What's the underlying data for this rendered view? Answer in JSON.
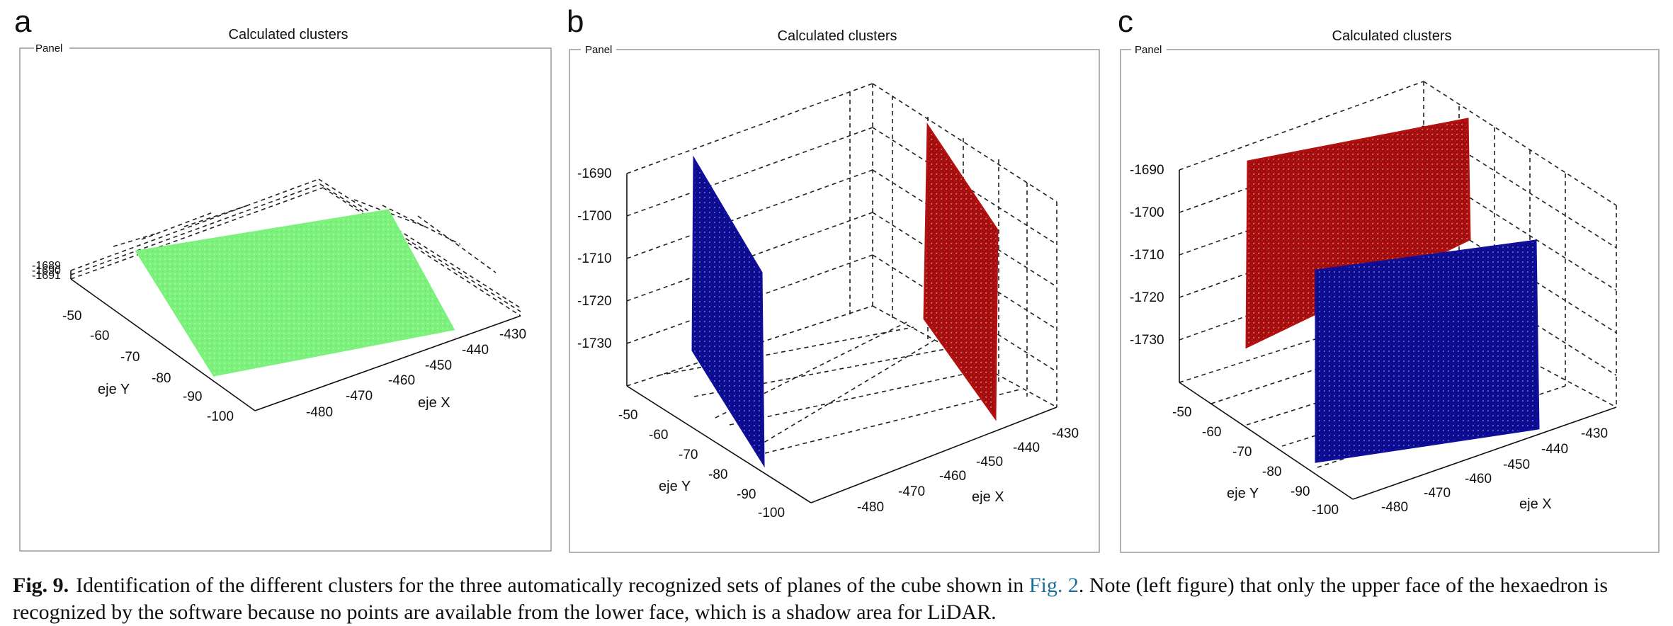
{
  "panels": [
    {
      "letter": "a",
      "title": "Calculated clusters",
      "frame_label": "Panel"
    },
    {
      "letter": "b",
      "title": "Calculated clusters",
      "frame_label": "Panel"
    },
    {
      "letter": "c",
      "title": "Calculated clusters",
      "frame_label": "Panel"
    }
  ],
  "caption": {
    "fig_label": "Fig. 9.",
    "text_before_ref": "Identification of the different clusters for the three automatically recognized sets of planes of the cube shown in ",
    "ref": "Fig. 2",
    "text_after_ref": ". Note (left figure) that only the upper face of the hexaedron is recognized by the software because no points are available from the lower face, which is a shadow area for LiDAR."
  },
  "colors": {
    "green": "#7cf27c",
    "blue": "#0f0f9a",
    "red": "#b31010"
  },
  "chart_data": [
    {
      "type": "scatter",
      "title": "Calculated clusters",
      "xlabel": "eje X",
      "ylabel": "eje Y",
      "x_ticks": [
        "-480",
        "-470",
        "-460",
        "-450",
        "-440",
        "-430"
      ],
      "y_ticks": [
        "-50",
        "-60",
        "-70",
        "-80",
        "-90",
        "-100"
      ],
      "z_ticks": [
        "-1689",
        "-1690",
        "-1691"
      ],
      "xlim": [
        -485,
        -425
      ],
      "ylim": [
        -100,
        -45
      ],
      "zlim": [
        -1691,
        -1689
      ],
      "grid": true,
      "series": [
        {
          "color": "#7cf27c",
          "plane": "upper face",
          "corners_xyz": [
            [
              -480,
              -50,
              -1690
            ],
            [
              -430,
              -50,
              -1690
            ],
            [
              -430,
              -100,
              -1690
            ],
            [
              -480,
              -100,
              -1690
            ]
          ]
        }
      ]
    },
    {
      "type": "scatter",
      "title": "Calculated clusters",
      "xlabel": "eje X",
      "ylabel": "eje Y",
      "x_ticks": [
        "-480",
        "-470",
        "-460",
        "-450",
        "-440",
        "-430"
      ],
      "y_ticks": [
        "-50",
        "-60",
        "-70",
        "-80",
        "-90",
        "-100"
      ],
      "z_ticks": [
        "-1690",
        "-1700",
        "-1710",
        "-1720",
        "-1730"
      ],
      "xlim": [
        -485,
        -425
      ],
      "ylim": [
        -100,
        -45
      ],
      "zlim": [
        -1740,
        -1685
      ],
      "grid": true,
      "series": [
        {
          "color": "#0f0f9a",
          "plane": "x = -480",
          "corners_xyz": [
            [
              -480,
              -50,
              -1690
            ],
            [
              -480,
              -100,
              -1690
            ],
            [
              -480,
              -100,
              -1740
            ],
            [
              -480,
              -50,
              -1740
            ]
          ]
        },
        {
          "color": "#b31010",
          "plane": "x = -430",
          "corners_xyz": [
            [
              -430,
              -50,
              -1690
            ],
            [
              -430,
              -100,
              -1690
            ],
            [
              -430,
              -100,
              -1740
            ],
            [
              -430,
              -50,
              -1740
            ]
          ]
        }
      ]
    },
    {
      "type": "scatter",
      "title": "Calculated clusters",
      "xlabel": "eje X",
      "ylabel": "eje Y",
      "x_ticks": [
        "-480",
        "-470",
        "-460",
        "-450",
        "-440",
        "-430"
      ],
      "y_ticks": [
        "-50",
        "-60",
        "-70",
        "-80",
        "-90",
        "-100"
      ],
      "z_ticks": [
        "-1690",
        "-1700",
        "-1710",
        "-1720",
        "-1730"
      ],
      "xlim": [
        -485,
        -425
      ],
      "ylim": [
        -100,
        -45
      ],
      "zlim": [
        -1740,
        -1685
      ],
      "grid": true,
      "series": [
        {
          "color": "#b31010",
          "plane": "y = -50",
          "corners_xyz": [
            [
              -480,
              -50,
              -1690
            ],
            [
              -430,
              -50,
              -1690
            ],
            [
              -430,
              -50,
              -1740
            ],
            [
              -480,
              -50,
              -1740
            ]
          ]
        },
        {
          "color": "#0f0f9a",
          "plane": "y = -100",
          "corners_xyz": [
            [
              -480,
              -100,
              -1690
            ],
            [
              -430,
              -100,
              -1690
            ],
            [
              -430,
              -100,
              -1740
            ],
            [
              -480,
              -100,
              -1740
            ]
          ]
        }
      ]
    }
  ]
}
